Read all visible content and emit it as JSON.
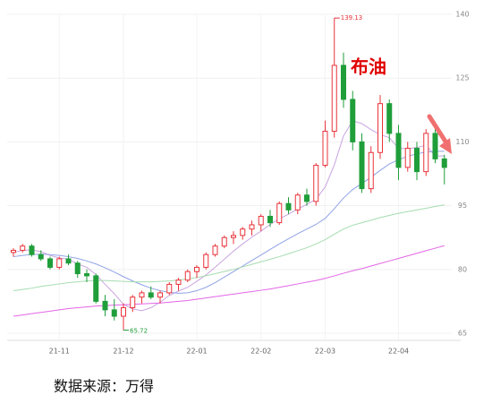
{
  "source": "数据来源：万得",
  "chart_data": {
    "type": "candlestick",
    "title": "布油",
    "categories": [
      null,
      null,
      null,
      null,
      null,
      "21-11",
      null,
      null,
      null,
      null,
      null,
      null,
      "21-12",
      null,
      null,
      null,
      null,
      null,
      null,
      null,
      "22-01",
      null,
      null,
      null,
      null,
      null,
      null,
      "22-02",
      null,
      null,
      null,
      null,
      null,
      null,
      "22-03",
      null,
      null,
      null,
      null,
      null,
      null,
      null,
      "22-04",
      null,
      null,
      null,
      null,
      null
    ],
    "open": [
      84,
      84.5,
      85.5,
      83.5,
      82.5,
      80.5,
      82.5,
      81.5,
      79,
      78.5,
      72.5,
      70.5,
      69,
      71,
      73.5,
      74.5,
      73.5,
      74.5,
      76.5,
      77.5,
      79.5,
      80.5,
      83.5,
      85.5,
      87.5,
      88,
      89.5,
      90.5,
      92.5,
      91,
      95.5,
      94,
      97.5,
      96,
      104.5,
      112.5,
      128,
      120,
      110,
      99,
      107.5,
      119,
      112,
      104,
      108.5,
      103,
      112,
      106
    ],
    "high": [
      85,
      86,
      86,
      84.5,
      83,
      83,
      83.5,
      82,
      80,
      79,
      74,
      73,
      72,
      74,
      75,
      76,
      75,
      77,
      78,
      80,
      81,
      84,
      86,
      88,
      89,
      90,
      91.5,
      93,
      94,
      96,
      97,
      98,
      99,
      105,
      115,
      139.13,
      131,
      122,
      112,
      109,
      121,
      120,
      114,
      110,
      110,
      113,
      114,
      107
    ],
    "low": [
      83,
      84,
      83,
      82,
      80,
      80,
      81,
      78,
      77,
      72,
      69,
      68,
      65.72,
      70,
      72,
      73,
      72,
      74,
      75,
      77,
      78,
      80,
      83,
      85,
      86,
      87,
      88,
      89,
      90,
      90.5,
      93,
      93,
      95,
      95,
      104,
      111,
      118,
      108,
      98,
      98,
      106,
      110,
      101,
      103,
      101,
      102,
      105,
      100
    ],
    "close": [
      84.5,
      85.5,
      83.5,
      82.5,
      80.5,
      82.5,
      81.5,
      79,
      78.5,
      72.5,
      70.5,
      69,
      71,
      73.5,
      74.5,
      73.5,
      74.5,
      76.5,
      77.5,
      79.5,
      80.5,
      83.5,
      85.5,
      87.5,
      88,
      89.5,
      90.5,
      92.5,
      91,
      95.5,
      94,
      97.5,
      96,
      104.5,
      112.5,
      128,
      120,
      110,
      99,
      107.5,
      119,
      112,
      104,
      108.5,
      103,
      112,
      106,
      104
    ],
    "up_color": "#e8333a",
    "down_color": "#1f9e3a",
    "annotations": [
      "139.13",
      "65.72"
    ],
    "series": [
      {
        "color": "#c9a4e0",
        "values": [
          84,
          84.5,
          84.6,
          84.2,
          83.3,
          82.7,
          82.4,
          81.3,
          80.5,
          78.8,
          76.5,
          74.3,
          71.8,
          70.7,
          70.3,
          71,
          72.3,
          73.9,
          74.9,
          75.8,
          77.2,
          78.7,
          80.5,
          82.4,
          84.3,
          86,
          87.6,
          89,
          90.6,
          91.9,
          93,
          94.2,
          95.3,
          96.5,
          99.4,
          104.6,
          111.4,
          115,
          114.3,
          112.9,
          111.7,
          111,
          108.5,
          108.4,
          108.7,
          109.2,
          106.7,
          106.7
        ]
      },
      {
        "color": "#8fa3e6",
        "values": [
          83,
          83.3,
          83.5,
          83.6,
          83.5,
          83.3,
          83,
          82.6,
          82,
          81.3,
          80.4,
          79.4,
          78.3,
          77.3,
          76.4,
          75.6,
          75,
          74.6,
          74.4,
          74.5,
          75,
          75.8,
          76.9,
          78.2,
          79.5,
          80.8,
          82.1,
          83.4,
          84.7,
          86,
          87.2,
          88.4,
          89.5,
          90.6,
          92,
          94.3,
          96.8,
          98.8,
          100.2,
          101.7,
          103.3,
          104.8,
          105.8,
          106.6,
          107.2,
          107.6,
          107.8,
          107.8
        ]
      },
      {
        "color": "#a6dcb0",
        "values": [
          75,
          75.3,
          75.6,
          76,
          76.3,
          76.6,
          76.9,
          77.1,
          77.3,
          77.4,
          77.4,
          77.3,
          77.2,
          77.1,
          77.1,
          77.1,
          77.2,
          77.3,
          77.5,
          77.8,
          78.1,
          78.5,
          79,
          79.5,
          80,
          80.6,
          81.2,
          81.8,
          82.4,
          83,
          83.7,
          84.4,
          85.1,
          86,
          87,
          88.3,
          89.5,
          90.4,
          91,
          91.6,
          92.2,
          92.7,
          93.2,
          93.6,
          94,
          94.4,
          94.8,
          95.2
        ]
      },
      {
        "color": "#e266e6",
        "values": [
          69,
          69.3,
          69.6,
          69.9,
          70.2,
          70.5,
          70.8,
          71,
          71.2,
          71.4,
          71.5,
          71.6,
          71.7,
          71.8,
          71.9,
          72,
          72.1,
          72.3,
          72.5,
          72.7,
          73,
          73.3,
          73.6,
          73.9,
          74.2,
          74.5,
          74.8,
          75.1,
          75.4,
          75.8,
          76.2,
          76.6,
          77,
          77.4,
          77.9,
          78.5,
          79.1,
          79.7,
          80.2,
          80.8,
          81.4,
          82,
          82.6,
          83.2,
          83.8,
          84.4,
          85,
          85.6
        ]
      }
    ],
    "ylim": [
      65,
      140
    ],
    "yticks": [
      65,
      80,
      95,
      110,
      125,
      140
    ],
    "grid": true
  }
}
